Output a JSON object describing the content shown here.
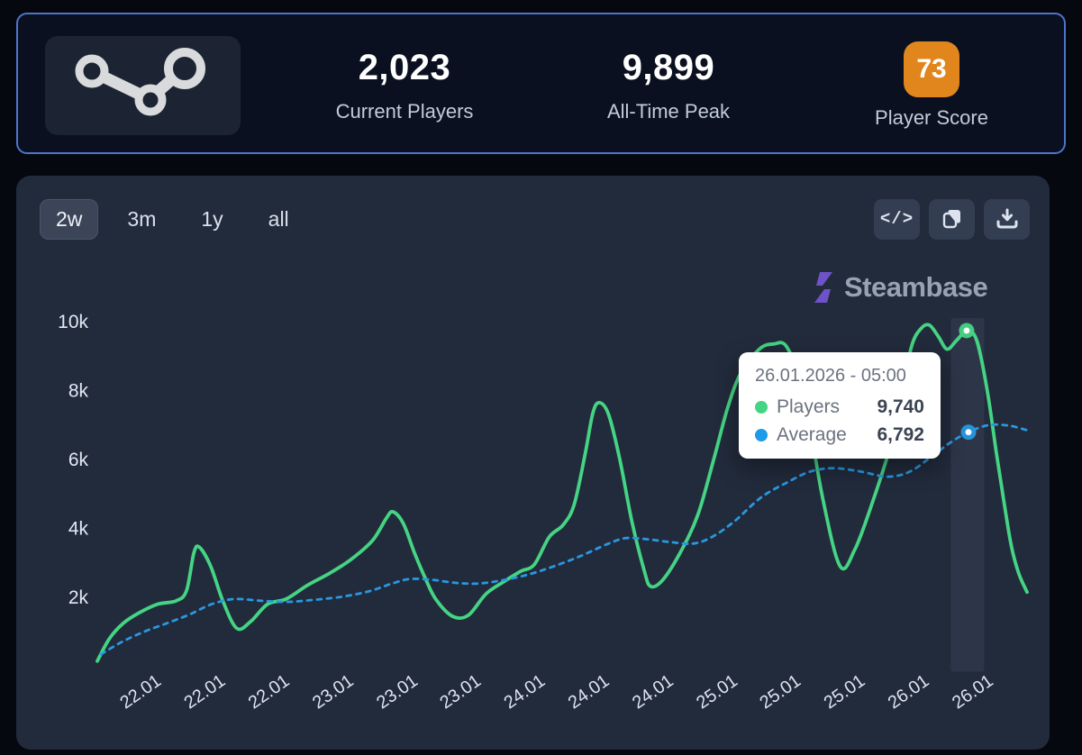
{
  "header": {
    "stats": [
      {
        "value": "2,023",
        "label": "Current Players"
      },
      {
        "value": "9,899",
        "label": "All-Time Peak"
      },
      {
        "value": "73",
        "label": "Player Score"
      }
    ],
    "score_badge_color": "#e1861d"
  },
  "chart_panel": {
    "ranges": [
      {
        "label": "2w",
        "active": true
      },
      {
        "label": "3m",
        "active": false
      },
      {
        "label": "1y",
        "active": false
      },
      {
        "label": "all",
        "active": false
      }
    ],
    "tools": [
      {
        "name": "embed-code",
        "glyph": "</>"
      },
      {
        "name": "copy"
      },
      {
        "name": "download"
      }
    ],
    "brand": "Steambase",
    "brand_icon_color": "#6e52c7"
  },
  "tooltip": {
    "date": "26.01.2026 - 05:00",
    "rows": [
      {
        "label": "Players",
        "value": "9,740",
        "color": "#45d483"
      },
      {
        "label": "Average",
        "value": "6,792",
        "color": "#1e9be6"
      }
    ]
  },
  "chart_data": {
    "type": "line",
    "title": "",
    "xlabel": "",
    "ylabel": "",
    "ylim": [
      0,
      10000
    ],
    "grid": false,
    "legend_position": "tooltip",
    "y_ticks": [
      {
        "label": "10k",
        "v": 10000
      },
      {
        "label": "8k",
        "v": 8000
      },
      {
        "label": "6k",
        "v": 6000
      },
      {
        "label": "4k",
        "v": 4000
      },
      {
        "label": "2k",
        "v": 2000
      }
    ],
    "x_ticks": [
      {
        "label": "22.01",
        "t": 0.05
      },
      {
        "label": "22.01",
        "t": 0.119
      },
      {
        "label": "22.01",
        "t": 0.188
      },
      {
        "label": "23.01",
        "t": 0.257
      },
      {
        "label": "23.01",
        "t": 0.326
      },
      {
        "label": "23.01",
        "t": 0.394
      },
      {
        "label": "24.01",
        "t": 0.463
      },
      {
        "label": "24.01",
        "t": 0.532
      },
      {
        "label": "24.01",
        "t": 0.601
      },
      {
        "label": "25.01",
        "t": 0.67
      },
      {
        "label": "25.01",
        "t": 0.738
      },
      {
        "label": "25.01",
        "t": 0.807
      },
      {
        "label": "26.01",
        "t": 0.876
      },
      {
        "label": "26.01",
        "t": 0.945
      }
    ],
    "highlight_band": {
      "t0": 0.918,
      "t1": 0.954
    },
    "series": [
      {
        "name": "Players",
        "color": "#45d483",
        "dash": null,
        "marker": {
          "t": 0.935,
          "v": 9740
        },
        "points": [
          [
            0.0,
            150
          ],
          [
            0.013,
            800
          ],
          [
            0.028,
            1250
          ],
          [
            0.045,
            1550
          ],
          [
            0.065,
            1800
          ],
          [
            0.085,
            1900
          ],
          [
            0.096,
            2200
          ],
          [
            0.104,
            3300
          ],
          [
            0.11,
            3450
          ],
          [
            0.122,
            2900
          ],
          [
            0.135,
            1900
          ],
          [
            0.15,
            1100
          ],
          [
            0.165,
            1300
          ],
          [
            0.183,
            1800
          ],
          [
            0.203,
            1950
          ],
          [
            0.226,
            2350
          ],
          [
            0.25,
            2700
          ],
          [
            0.273,
            3100
          ],
          [
            0.296,
            3650
          ],
          [
            0.311,
            4300
          ],
          [
            0.318,
            4480
          ],
          [
            0.329,
            4150
          ],
          [
            0.341,
            3300
          ],
          [
            0.352,
            2600
          ],
          [
            0.364,
            1950
          ],
          [
            0.382,
            1450
          ],
          [
            0.399,
            1480
          ],
          [
            0.418,
            2100
          ],
          [
            0.437,
            2450
          ],
          [
            0.455,
            2750
          ],
          [
            0.47,
            2950
          ],
          [
            0.486,
            3750
          ],
          [
            0.501,
            4100
          ],
          [
            0.513,
            4700
          ],
          [
            0.525,
            6200
          ],
          [
            0.533,
            7350
          ],
          [
            0.54,
            7650
          ],
          [
            0.55,
            7300
          ],
          [
            0.562,
            6000
          ],
          [
            0.575,
            4200
          ],
          [
            0.588,
            2800
          ],
          [
            0.595,
            2320
          ],
          [
            0.608,
            2500
          ],
          [
            0.627,
            3300
          ],
          [
            0.646,
            4400
          ],
          [
            0.663,
            6000
          ],
          [
            0.678,
            7500
          ],
          [
            0.692,
            8500
          ],
          [
            0.712,
            9200
          ],
          [
            0.727,
            9350
          ],
          [
            0.742,
            9250
          ],
          [
            0.76,
            7900
          ],
          [
            0.78,
            4900
          ],
          [
            0.799,
            2900
          ],
          [
            0.815,
            3400
          ],
          [
            0.833,
            4700
          ],
          [
            0.852,
            6300
          ],
          [
            0.864,
            7800
          ],
          [
            0.876,
            9300
          ],
          [
            0.886,
            9800
          ],
          [
            0.895,
            9900
          ],
          [
            0.905,
            9550
          ],
          [
            0.914,
            9200
          ],
          [
            0.924,
            9450
          ],
          [
            0.935,
            9740
          ],
          [
            0.944,
            9580
          ],
          [
            0.951,
            8900
          ],
          [
            0.959,
            7700
          ],
          [
            0.967,
            6200
          ],
          [
            0.975,
            4800
          ],
          [
            0.983,
            3500
          ],
          [
            0.991,
            2700
          ],
          [
            1.0,
            2150
          ]
        ]
      },
      {
        "name": "Average",
        "color": "#2898e0",
        "dash": [
          5,
          6
        ],
        "marker": {
          "t": 0.937,
          "v": 6792
        },
        "points": [
          [
            0.004,
            350
          ],
          [
            0.026,
            700
          ],
          [
            0.05,
            1000
          ],
          [
            0.075,
            1250
          ],
          [
            0.099,
            1500
          ],
          [
            0.123,
            1800
          ],
          [
            0.147,
            1950
          ],
          [
            0.176,
            1900
          ],
          [
            0.205,
            1870
          ],
          [
            0.234,
            1930
          ],
          [
            0.264,
            2020
          ],
          [
            0.293,
            2180
          ],
          [
            0.317,
            2400
          ],
          [
            0.336,
            2530
          ],
          [
            0.36,
            2510
          ],
          [
            0.385,
            2420
          ],
          [
            0.409,
            2400
          ],
          [
            0.433,
            2480
          ],
          [
            0.462,
            2650
          ],
          [
            0.491,
            2900
          ],
          [
            0.52,
            3200
          ],
          [
            0.549,
            3550
          ],
          [
            0.569,
            3720
          ],
          [
            0.593,
            3680
          ],
          [
            0.617,
            3600
          ],
          [
            0.641,
            3560
          ],
          [
            0.661,
            3750
          ],
          [
            0.685,
            4200
          ],
          [
            0.714,
            4900
          ],
          [
            0.743,
            5350
          ],
          [
            0.767,
            5650
          ],
          [
            0.792,
            5750
          ],
          [
            0.821,
            5650
          ],
          [
            0.85,
            5500
          ],
          [
            0.874,
            5650
          ],
          [
            0.898,
            6100
          ],
          [
            0.918,
            6500
          ],
          [
            0.937,
            6792
          ],
          [
            0.959,
            7000
          ],
          [
            0.981,
            6980
          ],
          [
            1.0,
            6850
          ]
        ]
      }
    ]
  }
}
